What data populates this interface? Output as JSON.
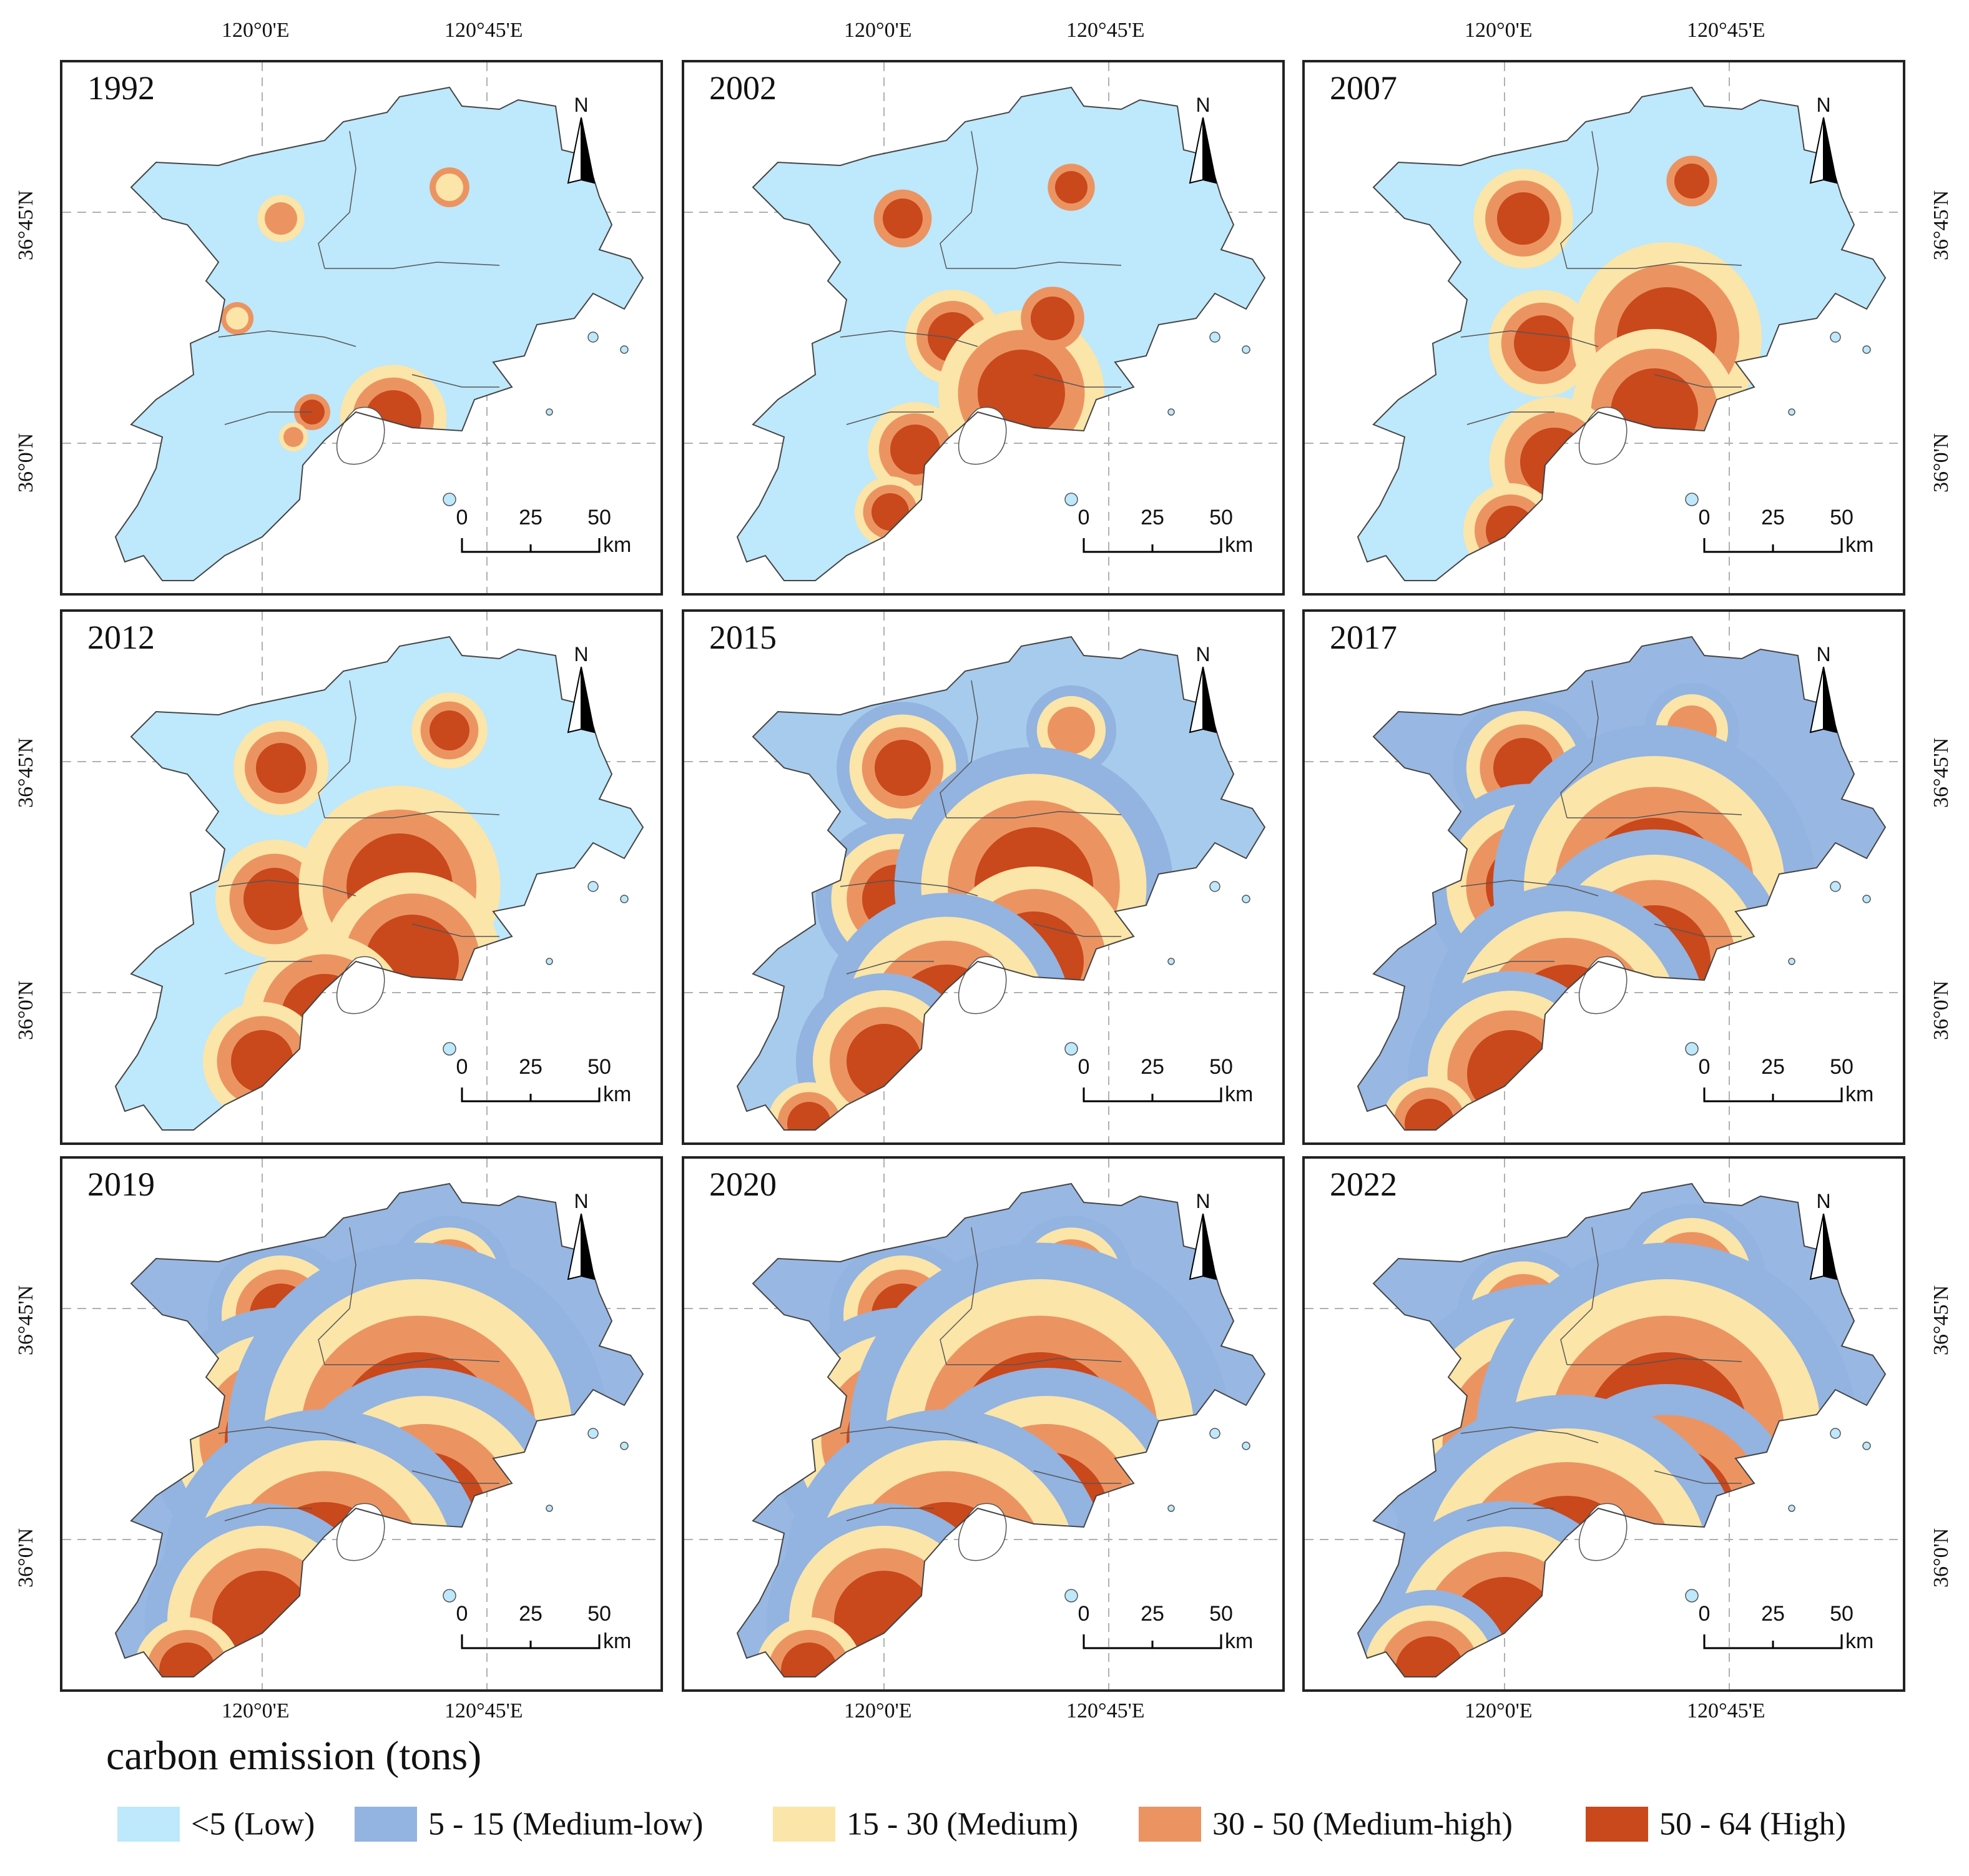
{
  "title": "carbon emission (tons)",
  "panels": [
    {
      "year": "1992",
      "stage": 0
    },
    {
      "year": "2002",
      "stage": 1
    },
    {
      "year": "2007",
      "stage": 2
    },
    {
      "year": "2012",
      "stage": 3
    },
    {
      "year": "2015",
      "stage": 4
    },
    {
      "year": "2017",
      "stage": 5
    },
    {
      "year": "2019",
      "stage": 6
    },
    {
      "year": "2020",
      "stage": 6
    },
    {
      "year": "2022",
      "stage": 7
    }
  ],
  "north_label": "N",
  "scale_bar": {
    "ticks": [
      "0",
      "25",
      "50"
    ],
    "unit": "km"
  },
  "graticule": {
    "longitudes": [
      "120°0'E",
      "120°45'E"
    ],
    "latitudes": [
      "36°45'N",
      "36°0'N"
    ]
  },
  "legend": [
    {
      "label": "<5 (Low)",
      "color": "#bee8fb"
    },
    {
      "label": "5 - 15 (Medium-low)",
      "color": "#93b3e0"
    },
    {
      "label": "15 - 30 (Medium)",
      "color": "#fbe5a8"
    },
    {
      "label": "30 - 50 (Medium-high)",
      "color": "#eb9462"
    },
    {
      "label": "50 - 64 (High)",
      "color": "#c9481c"
    }
  ]
}
